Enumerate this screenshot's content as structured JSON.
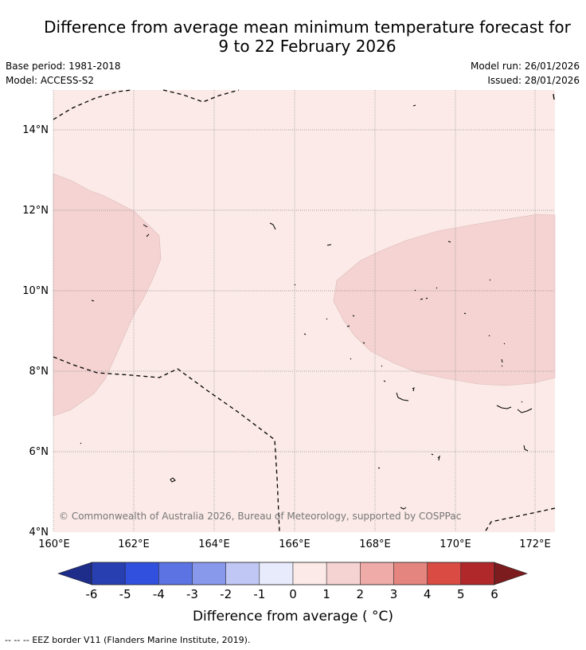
{
  "title": {
    "line1": "Difference from average mean minimum temperature forecast for",
    "line2": "9 to 22 February 2026"
  },
  "meta": {
    "base_period": "Base period: 1981-2018",
    "model": "Model: ACCESS-S2",
    "model_run": "Model run: 26/01/2026",
    "issued": "Issued: 28/01/2026"
  },
  "map": {
    "lon_range": [
      160,
      172.5
    ],
    "lat_range": [
      4,
      15
    ],
    "lon_ticks": [
      "160°E",
      "162°E",
      "164°E",
      "166°E",
      "168°E",
      "170°E",
      "172°E"
    ],
    "lat_ticks": [
      "4°N",
      "6°N",
      "8°N",
      "10°N",
      "12°N",
      "14°N"
    ],
    "background_class": "0 to 1",
    "anomaly_regions": [
      {
        "name": "west-region",
        "class": "1 to 2"
      },
      {
        "name": "east-region",
        "class": "1 to 2"
      }
    ],
    "copyright": "© Commonwealth of Australia 2026, Bureau of Meteorology, supported by COSPPac"
  },
  "colorbar": {
    "ticks": [
      "-6",
      "-5",
      "-4",
      "-3",
      "-2",
      "-1",
      "0",
      "1",
      "2",
      "3",
      "4",
      "5",
      "6"
    ],
    "colors": [
      "#283fb2",
      "#3050dd",
      "#5b73e3",
      "#8898eb",
      "#c0c7f4",
      "#e8ebfb",
      "#fbeae7",
      "#f4d3d2",
      "#eeaba8",
      "#e58580",
      "#da4b44",
      "#b0282a"
    ],
    "under_color": "#1e2c8a",
    "over_color": "#7d1c1f",
    "label": "Difference from average ( °C)"
  },
  "footer": {
    "legend_symbol": "-- -- --",
    "legend_text": "EEZ border V11 (Flanders Marine Institute, 2019)."
  }
}
